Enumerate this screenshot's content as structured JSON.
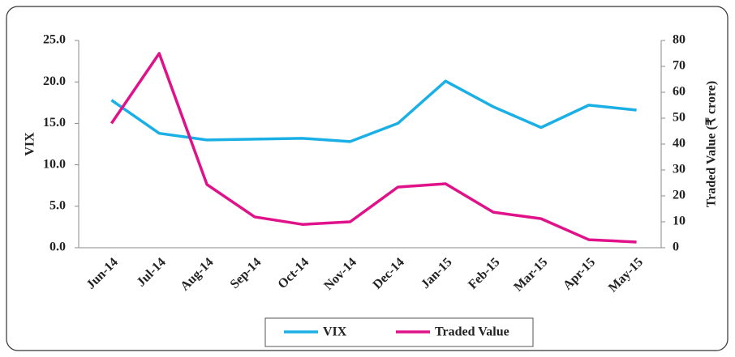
{
  "chart_data": {
    "type": "line",
    "categories": [
      "Jun-14",
      "Jul-14",
      "Aug-14",
      "Sep-14",
      "Oct-14",
      "Nov-14",
      "Dec-14",
      "Jan-15",
      "Feb-15",
      "Mar-15",
      "Apr-15",
      "May-15"
    ],
    "series": [
      {
        "name": "VIX",
        "color": "#1ab0e6",
        "values": [
          17.8,
          13.8,
          13.0,
          13.1,
          13.2,
          12.8,
          15.0,
          20.1,
          17.0,
          14.5,
          17.2,
          16.6
        ]
      },
      {
        "name": "Traded Value",
        "color": "#e0128a",
        "axis": "y2",
        "values": [
          48,
          75,
          24.4,
          11.9,
          9,
          10,
          23.4,
          24.7,
          13.7,
          11.2,
          3.1,
          2.2
        ]
      }
    ],
    "ylabel": "VIX",
    "y2label": "Traded Value (₹ crore)",
    "ylim": [
      0,
      25
    ],
    "yticks": [
      {
        "value": 0,
        "label": "0.0"
      },
      {
        "value": 5,
        "label": "5.0"
      },
      {
        "value": 10,
        "label": "10.0"
      },
      {
        "value": 15,
        "label": "15.0"
      },
      {
        "value": 20,
        "label": "20.0"
      },
      {
        "value": 25,
        "label": "25.0"
      }
    ],
    "y2lim": [
      0,
      80
    ],
    "y2ticks": [
      0,
      10,
      20,
      30,
      40,
      50,
      60,
      70,
      80
    ],
    "legend": "bottom",
    "grid": false
  }
}
